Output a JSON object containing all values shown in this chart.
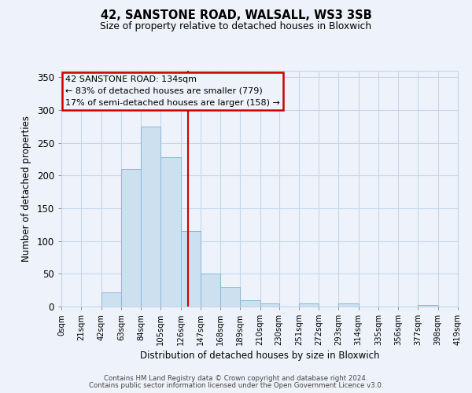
{
  "title": "42, SANSTONE ROAD, WALSALL, WS3 3SB",
  "subtitle": "Size of property relative to detached houses in Bloxwich",
  "xlabel": "Distribution of detached houses by size in Bloxwich",
  "ylabel": "Number of detached properties",
  "bin_edges": [
    0,
    21,
    42,
    63,
    84,
    105,
    126,
    147,
    168,
    189,
    210,
    230,
    251,
    272,
    293,
    314,
    335,
    356,
    377,
    398,
    419
  ],
  "bin_labels": [
    "0sqm",
    "21sqm",
    "42sqm",
    "63sqm",
    "84sqm",
    "105sqm",
    "126sqm",
    "147sqm",
    "168sqm",
    "189sqm",
    "210sqm",
    "230sqm",
    "251sqm",
    "272sqm",
    "293sqm",
    "314sqm",
    "335sqm",
    "356sqm",
    "377sqm",
    "398sqm",
    "419sqm"
  ],
  "bar_heights": [
    0,
    0,
    22,
    210,
    275,
    228,
    115,
    50,
    30,
    10,
    5,
    0,
    5,
    0,
    5,
    0,
    0,
    0,
    2,
    0,
    0
  ],
  "bar_color": "#cce0f0",
  "bar_edge_color": "#8ab8d8",
  "vline_x": 134,
  "vline_color": "#cc0000",
  "ylim": [
    0,
    360
  ],
  "yticks": [
    0,
    50,
    100,
    150,
    200,
    250,
    300,
    350
  ],
  "bg_color": "#eef3fb",
  "grid_color": "#c5d5e8",
  "annotation_line1": "42 SANSTONE ROAD: 134sqm",
  "annotation_line2": "← 83% of detached houses are smaller (779)",
  "annotation_line3": "17% of semi-detached houses are larger (158) →",
  "annotation_box_color": "#cc0000",
  "footer_line1": "Contains HM Land Registry data © Crown copyright and database right 2024.",
  "footer_line2": "Contains public sector information licensed under the Open Government Licence v3.0."
}
